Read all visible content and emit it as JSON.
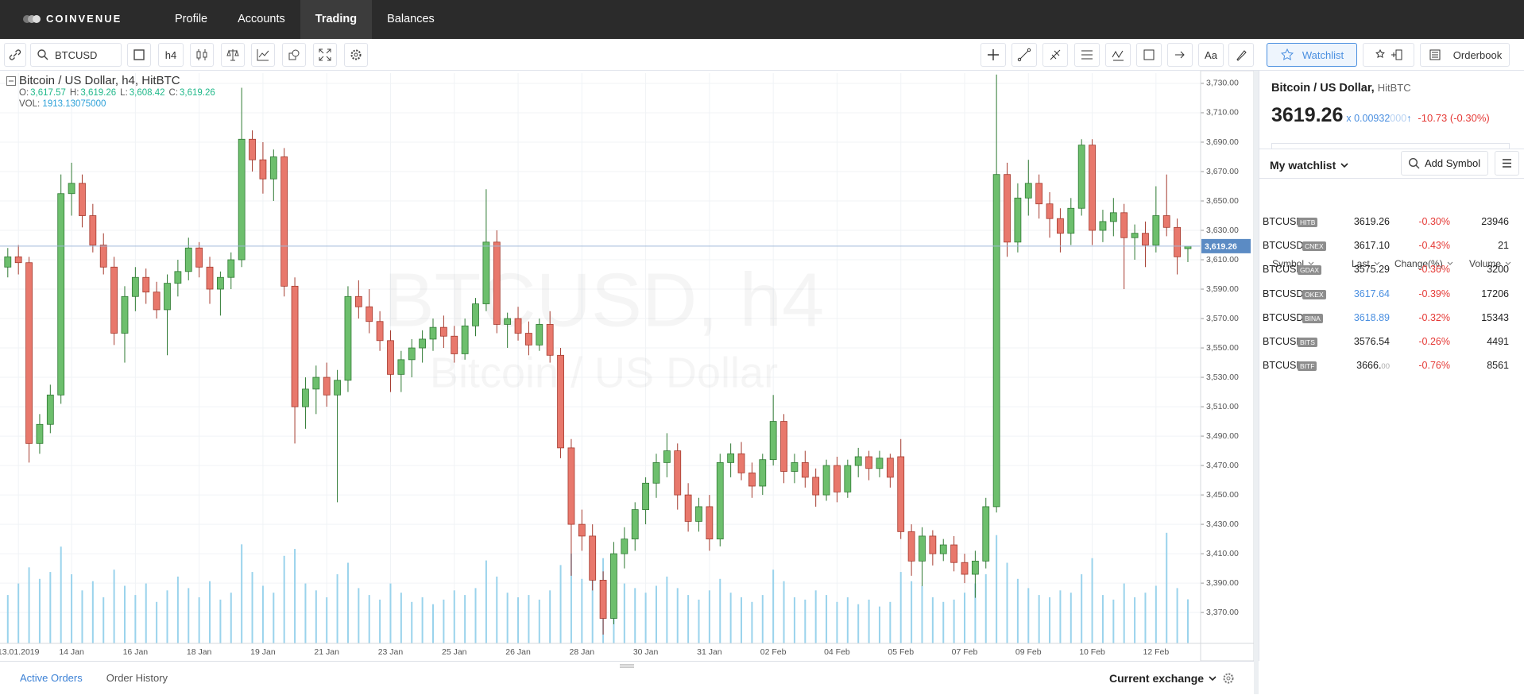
{
  "nav": {
    "logo": "COINVENUE",
    "items": [
      "Profile",
      "Accounts",
      "Trading",
      "Balances"
    ],
    "active": 2
  },
  "toolbar": {
    "symbol": "BTCUSD",
    "interval": "h4",
    "font_button": "Aa",
    "watchlist": "Watchlist",
    "orderbook": "Orderbook"
  },
  "chart_data": {
    "type": "candlestick",
    "title": "Bitcoin / US Dollar,",
    "interval": "h4,",
    "exchange": "HitBTC",
    "ohlc": [
      {
        "label": "O:",
        "value": "3,617.57"
      },
      {
        "label": "H:",
        "value": "3,619.26"
      },
      {
        "label": "L:",
        "value": "3,608.42"
      },
      {
        "label": "C:",
        "value": "3,619.26"
      }
    ],
    "volume_label": "VOL:",
    "volume_value": "1913.13075000",
    "watermark": "BTCUSD, h4",
    "watermark_subtitle": "Bitcoin / US Dollar",
    "categories": [
      null,
      "13.01.2019",
      null,
      null,
      null,
      null,
      "14 Jan",
      null,
      null,
      null,
      null,
      null,
      "16 Jan",
      null,
      null,
      null,
      null,
      null,
      "18 Jan",
      null,
      null,
      null,
      null,
      null,
      "19 Jan",
      null,
      null,
      null,
      null,
      null,
      "21 Jan",
      null,
      null,
      null,
      null,
      null,
      "23 Jan",
      null,
      null,
      null,
      null,
      null,
      "25 Jan",
      null,
      null,
      null,
      null,
      null,
      "26 Jan",
      null,
      null,
      null,
      null,
      null,
      "28 Jan",
      null,
      null,
      null,
      null,
      null,
      "30 Jan",
      null,
      null,
      null,
      null,
      null,
      "31 Jan",
      null,
      null,
      null,
      null,
      null,
      "02 Feb",
      null,
      null,
      null,
      null,
      null,
      "04 Feb",
      null,
      null,
      null,
      null,
      null,
      "05 Feb",
      null,
      null,
      null,
      null,
      null,
      "07 Feb",
      null,
      null,
      null,
      null,
      null,
      "09 Feb",
      null,
      null,
      null,
      null,
      null,
      "10 Feb",
      null,
      null,
      null,
      null,
      null,
      "12 Feb",
      null,
      null,
      null
    ],
    "candles": [
      [
        3605,
        3618,
        3598,
        3612,
        2100
      ],
      [
        3612,
        3620,
        3600,
        3608,
        2600
      ],
      [
        3608,
        3612,
        3472,
        3485,
        3300
      ],
      [
        3485,
        3505,
        3478,
        3498,
        2800
      ],
      [
        3498,
        3525,
        3492,
        3518,
        3100
      ],
      [
        3518,
        3668,
        3512,
        3655,
        4200
      ],
      [
        3655,
        3676,
        3640,
        3662,
        3000
      ],
      [
        3662,
        3668,
        3632,
        3640,
        2300
      ],
      [
        3640,
        3648,
        3615,
        3620,
        2700
      ],
      [
        3620,
        3628,
        3600,
        3605,
        2000
      ],
      [
        3605,
        3612,
        3552,
        3560,
        3200
      ],
      [
        3560,
        3592,
        3540,
        3585,
        2500
      ],
      [
        3585,
        3605,
        3575,
        3598,
        2100
      ],
      [
        3598,
        3604,
        3580,
        3588,
        2600
      ],
      [
        3588,
        3595,
        3570,
        3576,
        1800
      ],
      [
        3576,
        3600,
        3545,
        3594,
        2300
      ],
      [
        3594,
        3610,
        3585,
        3602,
        2900
      ],
      [
        3602,
        3625,
        3596,
        3618,
        2400
      ],
      [
        3618,
        3622,
        3598,
        3605,
        2000
      ],
      [
        3605,
        3612,
        3580,
        3590,
        2700
      ],
      [
        3590,
        3602,
        3572,
        3598,
        1900
      ],
      [
        3598,
        3615,
        3590,
        3610,
        2200
      ],
      [
        3610,
        3727,
        3605,
        3692,
        4300
      ],
      [
        3692,
        3698,
        3670,
        3678,
        3100
      ],
      [
        3678,
        3690,
        3655,
        3665,
        2500
      ],
      [
        3665,
        3685,
        3650,
        3680,
        2200
      ],
      [
        3680,
        3686,
        3585,
        3592,
        3800
      ],
      [
        3592,
        3598,
        3485,
        3510,
        4100
      ],
      [
        3510,
        3530,
        3495,
        3522,
        2600
      ],
      [
        3522,
        3538,
        3505,
        3530,
        2300
      ],
      [
        3530,
        3540,
        3510,
        3518,
        2000
      ],
      [
        3518,
        3535,
        3445,
        3528,
        3000
      ],
      [
        3528,
        3592,
        3520,
        3585,
        3500
      ],
      [
        3585,
        3596,
        3570,
        3578,
        2400
      ],
      [
        3578,
        3590,
        3560,
        3568,
        2100
      ],
      [
        3568,
        3575,
        3548,
        3555,
        1900
      ],
      [
        3555,
        3562,
        3520,
        3532,
        2600
      ],
      [
        3532,
        3548,
        3520,
        3542,
        2200
      ],
      [
        3542,
        3556,
        3530,
        3550,
        1800
      ],
      [
        3550,
        3562,
        3540,
        3556,
        2000
      ],
      [
        3556,
        3570,
        3548,
        3564,
        1700
      ],
      [
        3564,
        3572,
        3550,
        3558,
        1900
      ],
      [
        3558,
        3565,
        3540,
        3546,
        2300
      ],
      [
        3546,
        3570,
        3542,
        3565,
        2100
      ],
      [
        3565,
        3584,
        3558,
        3580,
        2400
      ],
      [
        3580,
        3658,
        3575,
        3622,
        3600
      ],
      [
        3622,
        3630,
        3560,
        3566,
        2900
      ],
      [
        3566,
        3574,
        3550,
        3570,
        2200
      ],
      [
        3570,
        3578,
        3555,
        3560,
        2000
      ],
      [
        3560,
        3568,
        3545,
        3552,
        2100
      ],
      [
        3552,
        3570,
        3548,
        3566,
        1900
      ],
      [
        3566,
        3575,
        3540,
        3545,
        2300
      ],
      [
        3545,
        3550,
        3475,
        3482,
        3400
      ],
      [
        3482,
        3488,
        3395,
        3430,
        3900
      ],
      [
        3430,
        3440,
        3412,
        3422,
        2800
      ],
      [
        3422,
        3430,
        3385,
        3392,
        3100
      ],
      [
        3392,
        3398,
        3355,
        3366,
        3700
      ],
      [
        3366,
        3418,
        3362,
        3410,
        3300
      ],
      [
        3410,
        3428,
        3400,
        3420,
        2600
      ],
      [
        3420,
        3445,
        3412,
        3440,
        2400
      ],
      [
        3440,
        3462,
        3430,
        3458,
        2200
      ],
      [
        3458,
        3478,
        3448,
        3472,
        2500
      ],
      [
        3472,
        3492,
        3462,
        3480,
        2900
      ],
      [
        3480,
        3485,
        3440,
        3450,
        2400
      ],
      [
        3450,
        3458,
        3425,
        3432,
        2100
      ],
      [
        3432,
        3448,
        3425,
        3442,
        1900
      ],
      [
        3442,
        3450,
        3412,
        3420,
        2300
      ],
      [
        3420,
        3478,
        3415,
        3472,
        2800
      ],
      [
        3472,
        3485,
        3462,
        3478,
        2200
      ],
      [
        3478,
        3486,
        3460,
        3465,
        2000
      ],
      [
        3465,
        3472,
        3448,
        3456,
        1800
      ],
      [
        3456,
        3478,
        3450,
        3474,
        2100
      ],
      [
        3474,
        3518,
        3470,
        3500,
        3200
      ],
      [
        3500,
        3505,
        3458,
        3466,
        2700
      ],
      [
        3466,
        3478,
        3458,
        3472,
        2000
      ],
      [
        3472,
        3480,
        3455,
        3462,
        1900
      ],
      [
        3462,
        3468,
        3442,
        3450,
        2300
      ],
      [
        3450,
        3474,
        3446,
        3470,
        2100
      ],
      [
        3470,
        3476,
        3445,
        3452,
        1800
      ],
      [
        3452,
        3474,
        3448,
        3470,
        2000
      ],
      [
        3470,
        3482,
        3462,
        3476,
        1700
      ],
      [
        3476,
        3480,
        3460,
        3468,
        1900
      ],
      [
        3468,
        3480,
        3462,
        3475,
        1600
      ],
      [
        3475,
        3478,
        3455,
        3462,
        1800
      ],
      [
        3476,
        3488,
        3420,
        3425,
        3100
      ],
      [
        3425,
        3430,
        3395,
        3405,
        2700
      ],
      [
        3405,
        3428,
        3388,
        3422,
        2500
      ],
      [
        3422,
        3426,
        3402,
        3410,
        2000
      ],
      [
        3410,
        3420,
        3405,
        3416,
        1800
      ],
      [
        3416,
        3422,
        3398,
        3404,
        1900
      ],
      [
        3404,
        3410,
        3390,
        3396,
        2200
      ],
      [
        3396,
        3412,
        3380,
        3405,
        2600
      ],
      [
        3405,
        3448,
        3400,
        3442,
        3000
      ],
      [
        3442,
        3736,
        3438,
        3668,
        4700
      ],
      [
        3668,
        3676,
        3612,
        3622,
        3500
      ],
      [
        3622,
        3662,
        3615,
        3652,
        2800
      ],
      [
        3652,
        3678,
        3640,
        3662,
        2400
      ],
      [
        3662,
        3668,
        3638,
        3648,
        2100
      ],
      [
        3648,
        3656,
        3625,
        3638,
        2000
      ],
      [
        3638,
        3645,
        3615,
        3628,
        2300
      ],
      [
        3628,
        3652,
        3620,
        3645,
        2200
      ],
      [
        3645,
        3692,
        3640,
        3688,
        3000
      ],
      [
        3688,
        3692,
        3620,
        3630,
        3700
      ],
      [
        3630,
        3644,
        3622,
        3636,
        2100
      ],
      [
        3636,
        3652,
        3626,
        3642,
        1900
      ],
      [
        3642,
        3648,
        3590,
        3625,
        2600
      ],
      [
        3625,
        3634,
        3610,
        3628,
        2000
      ],
      [
        3628,
        3636,
        3605,
        3620,
        2200
      ],
      [
        3620,
        3660,
        3615,
        3640,
        2500
      ],
      [
        3640,
        3668,
        3626,
        3632,
        4800
      ],
      [
        3632,
        3638,
        3600,
        3612,
        2400
      ],
      [
        3617.57,
        3619.26,
        3608.42,
        3619.26,
        1913.13075
      ]
    ],
    "up_color": "#6dbf6d",
    "down_color": "#e8786c",
    "volume_color": "#9ad3ec",
    "ylim": [
      3349,
      3737
    ],
    "yticks": [
      {
        "value": 3370,
        "label": "3,370.00"
      },
      {
        "value": 3390,
        "label": "3,390.00"
      },
      {
        "value": 3410,
        "label": "3,410.00"
      },
      {
        "value": 3430,
        "label": "3,430.00"
      },
      {
        "value": 3450,
        "label": "3,450.00"
      },
      {
        "value": 3470,
        "label": "3,470.00"
      },
      {
        "value": 3490,
        "label": "3,490.00"
      },
      {
        "value": 3510,
        "label": "3,510.00"
      },
      {
        "value": 3530,
        "label": "3,530.00"
      },
      {
        "value": 3550,
        "label": "3,550.00"
      },
      {
        "value": 3570,
        "label": "3,570.00"
      },
      {
        "value": 3590,
        "label": "3,590.00"
      },
      {
        "value": 3610,
        "label": "3,610.00"
      },
      {
        "value": 3630,
        "label": "3,630.00"
      },
      {
        "value": 3650,
        "label": "3,650.00"
      },
      {
        "value": 3670,
        "label": "3,670.00"
      },
      {
        "value": 3690,
        "label": "3,690.00"
      },
      {
        "value": 3710,
        "label": "3,710.00"
      },
      {
        "value": 3730,
        "label": "3,730.00"
      }
    ],
    "vlim": [
      0,
      10000
    ],
    "last_price": {
      "value": 3619.26,
      "label": "3,619.26"
    },
    "grid": true
  },
  "panel": {
    "title": "Bitcoin / US Dollar,",
    "exchange": "HitBTC",
    "price": "3619.26",
    "ratio": "x 0.00932",
    "ratio_faded": "000",
    "arrow": "↑",
    "change": "-10.73 (-0.30%)",
    "watchlist": "My watchlist",
    "add": "Add Symbol",
    "columns": [
      "Symbol",
      "Last",
      "Change(%)",
      "Volume"
    ],
    "rows": [
      {
        "symbol": "BTCUSD",
        "badge": "HITB",
        "last": "3619.26",
        "change": "-0.30%",
        "volume": "23946"
      },
      {
        "symbol": "BTCUSDT",
        "badge": "CNEX",
        "last": "3617.10",
        "change": "-0.43%",
        "volume": "21"
      },
      {
        "symbol": "BTCUSD",
        "badge": "GDAX",
        "last": "3575.29",
        "change": "-0.36%",
        "volume": "3200"
      },
      {
        "symbol": "BTCUSDT",
        "badge": "OKEX",
        "last": "3617.64",
        "change": "-0.39%",
        "volume": "17206",
        "last_color": "#4a8fe0"
      },
      {
        "symbol": "BTCUSDT",
        "badge": "BINA",
        "last": "3618.89",
        "change": "-0.32%",
        "volume": "15343",
        "last_color": "#4a8fe0"
      },
      {
        "symbol": "BTCUSD",
        "badge": "BITS",
        "last": "3576.54",
        "change": "-0.26%",
        "volume": "4491"
      },
      {
        "symbol": "BTCUSD",
        "badge": "BITF",
        "last": "3666.",
        "last_faded": "00",
        "change": "-0.76%",
        "volume": "8561"
      }
    ]
  },
  "bottom": {
    "tabs": [
      "Active Orders",
      "Order History"
    ],
    "active": 0,
    "exchange": "Current exchange"
  }
}
